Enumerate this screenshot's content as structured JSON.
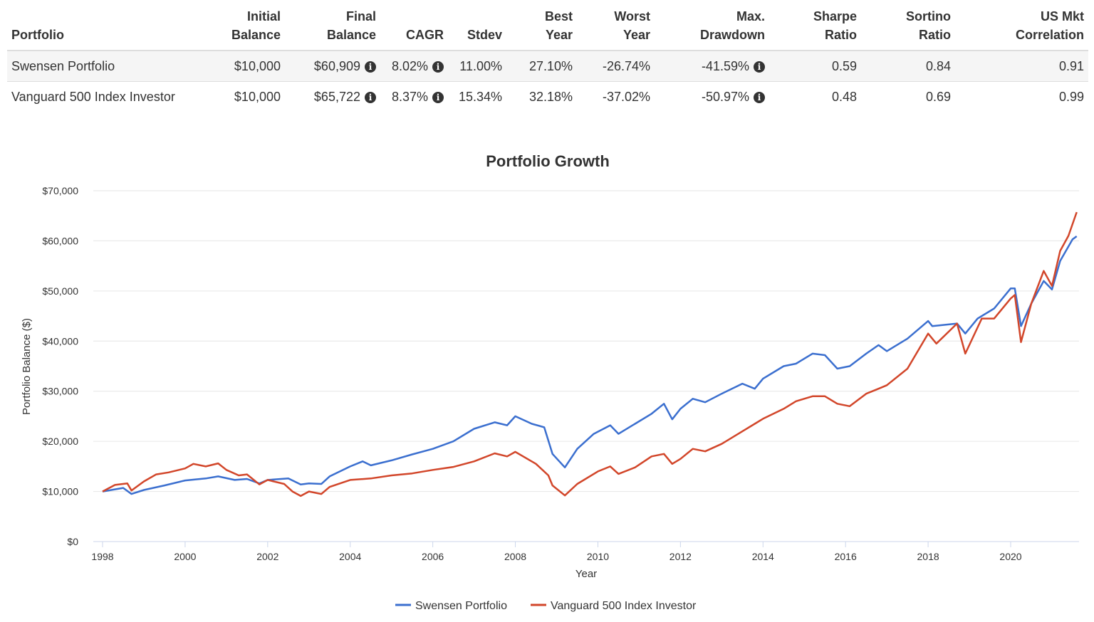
{
  "table": {
    "headers": [
      [
        "",
        "Portfolio"
      ],
      [
        "Initial",
        "Balance"
      ],
      [
        "Final",
        "Balance"
      ],
      [
        "",
        "CAGR"
      ],
      [
        "",
        "Stdev"
      ],
      [
        "Best",
        "Year"
      ],
      [
        "Worst",
        "Year"
      ],
      [
        "Max.",
        "Drawdown"
      ],
      [
        "Sharpe",
        "Ratio"
      ],
      [
        "Sortino",
        "Ratio"
      ],
      [
        "US Mkt",
        "Correlation"
      ]
    ],
    "rows": [
      {
        "portfolio": "Swensen Portfolio",
        "initial": "$10,000",
        "final": "$60,909",
        "cagr": "8.02%",
        "stdev": "11.00%",
        "best": "27.10%",
        "worst": "-26.74%",
        "maxdd": "-41.59%",
        "sharpe": "0.59",
        "sortino": "0.84",
        "corr": "0.91"
      },
      {
        "portfolio": "Vanguard 500 Index Investor",
        "initial": "$10,000",
        "final": "$65,722",
        "cagr": "8.37%",
        "stdev": "15.34%",
        "best": "32.18%",
        "worst": "-37.02%",
        "maxdd": "-50.97%",
        "sharpe": "0.48",
        "sortino": "0.69",
        "corr": "0.99"
      }
    ],
    "info_icon": "i"
  },
  "chart_data": {
    "type": "line",
    "title": "Portfolio Growth",
    "xlabel": "Year",
    "ylabel": "Portfolio Balance ($)",
    "xlim": [
      1998,
      2021.6
    ],
    "ylim": [
      0,
      70000
    ],
    "xticks": [
      1998,
      2000,
      2002,
      2004,
      2006,
      2008,
      2010,
      2012,
      2014,
      2016,
      2018,
      2020
    ],
    "yticks": [
      0,
      10000,
      20000,
      30000,
      40000,
      50000,
      60000,
      70000
    ],
    "ytick_labels": [
      "$0",
      "$10,000",
      "$20,000",
      "$30,000",
      "$40,000",
      "$50,000",
      "$60,000",
      "$70,000"
    ],
    "grid": true,
    "legend": "bottom",
    "series": [
      {
        "name": "Swensen Portfolio",
        "color": "#3b6fcf",
        "x": [
          1998,
          1998.5,
          1998.7,
          1999,
          1999.5,
          2000,
          2000.5,
          2000.8,
          2001.2,
          2001.5,
          2001.8,
          2002,
          2002.5,
          2002.8,
          2003,
          2003.3,
          2003.5,
          2004,
          2004.3,
          2004.5,
          2005,
          2005.5,
          2006,
          2006.5,
          2007,
          2007.5,
          2007.8,
          2008,
          2008.4,
          2008.7,
          2008.9,
          2009.2,
          2009.5,
          2009.9,
          2010.3,
          2010.5,
          2010.9,
          2011.3,
          2011.6,
          2011.8,
          2012,
          2012.3,
          2012.6,
          2013,
          2013.5,
          2013.8,
          2014,
          2014.5,
          2014.8,
          2015.2,
          2015.5,
          2015.8,
          2016.1,
          2016.5,
          2016.8,
          2017,
          2017.5,
          2018,
          2018.1,
          2018.7,
          2018.9,
          2019.2,
          2019.6,
          2020,
          2020.1,
          2020.25,
          2020.5,
          2020.8,
          2021,
          2021.2,
          2021.5,
          2021.6
        ],
        "y": [
          10000,
          10700,
          9500,
          10300,
          11200,
          12200,
          12600,
          13000,
          12300,
          12500,
          11600,
          12300,
          12600,
          11400,
          11600,
          11500,
          13000,
          15000,
          16000,
          15200,
          16200,
          17400,
          18500,
          20000,
          22500,
          23800,
          23200,
          25000,
          23500,
          22800,
          17500,
          14800,
          18500,
          21500,
          23200,
          21500,
          23500,
          25500,
          27500,
          24400,
          26500,
          28500,
          27800,
          29500,
          31500,
          30500,
          32500,
          35000,
          35500,
          37500,
          37200,
          34500,
          35000,
          37500,
          39200,
          38000,
          40500,
          44000,
          43000,
          43500,
          41500,
          44500,
          46500,
          50500,
          50500,
          43000,
          47500,
          52000,
          50300,
          56000,
          60300,
          60909
        ]
      },
      {
        "name": "Vanguard 500 Index Investor",
        "color": "#d2462a",
        "x": [
          1998,
          1998.3,
          1998.6,
          1998.7,
          1999,
          1999.3,
          1999.6,
          2000,
          2000.2,
          2000.5,
          2000.8,
          2001,
          2001.3,
          2001.5,
          2001.8,
          2002,
          2002.4,
          2002.6,
          2002.8,
          2003,
          2003.3,
          2003.5,
          2004,
          2004.5,
          2005,
          2005.5,
          2006,
          2006.5,
          2007,
          2007.5,
          2007.8,
          2008,
          2008.5,
          2008.8,
          2008.9,
          2009.2,
          2009.5,
          2010,
          2010.3,
          2010.5,
          2010.9,
          2011.3,
          2011.6,
          2011.8,
          2012,
          2012.3,
          2012.6,
          2013,
          2013.5,
          2013.8,
          2014,
          2014.5,
          2014.8,
          2015.2,
          2015.5,
          2015.8,
          2016.1,
          2016.5,
          2016.8,
          2017,
          2017.5,
          2018,
          2018.2,
          2018.7,
          2018.9,
          2019.3,
          2019.6,
          2020,
          2020.1,
          2020.25,
          2020.5,
          2020.8,
          2021,
          2021.2,
          2021.4,
          2021.6
        ],
        "y": [
          10000,
          11300,
          11600,
          10200,
          12000,
          13400,
          13800,
          14600,
          15500,
          15000,
          15600,
          14300,
          13200,
          13400,
          11400,
          12300,
          11500,
          10000,
          9100,
          10000,
          9500,
          10900,
          12300,
          12600,
          13200,
          13600,
          14300,
          14900,
          16000,
          17600,
          17000,
          17900,
          15500,
          13200,
          11200,
          9200,
          11500,
          14000,
          15000,
          13500,
          14800,
          17000,
          17500,
          15500,
          16500,
          18500,
          18000,
          19500,
          22000,
          23500,
          24500,
          26500,
          28000,
          29000,
          29000,
          27500,
          27000,
          29500,
          30500,
          31200,
          34500,
          41500,
          39500,
          43500,
          37500,
          44500,
          44500,
          48500,
          49200,
          39800,
          47500,
          54000,
          51000,
          58000,
          61000,
          65722
        ]
      }
    ]
  }
}
